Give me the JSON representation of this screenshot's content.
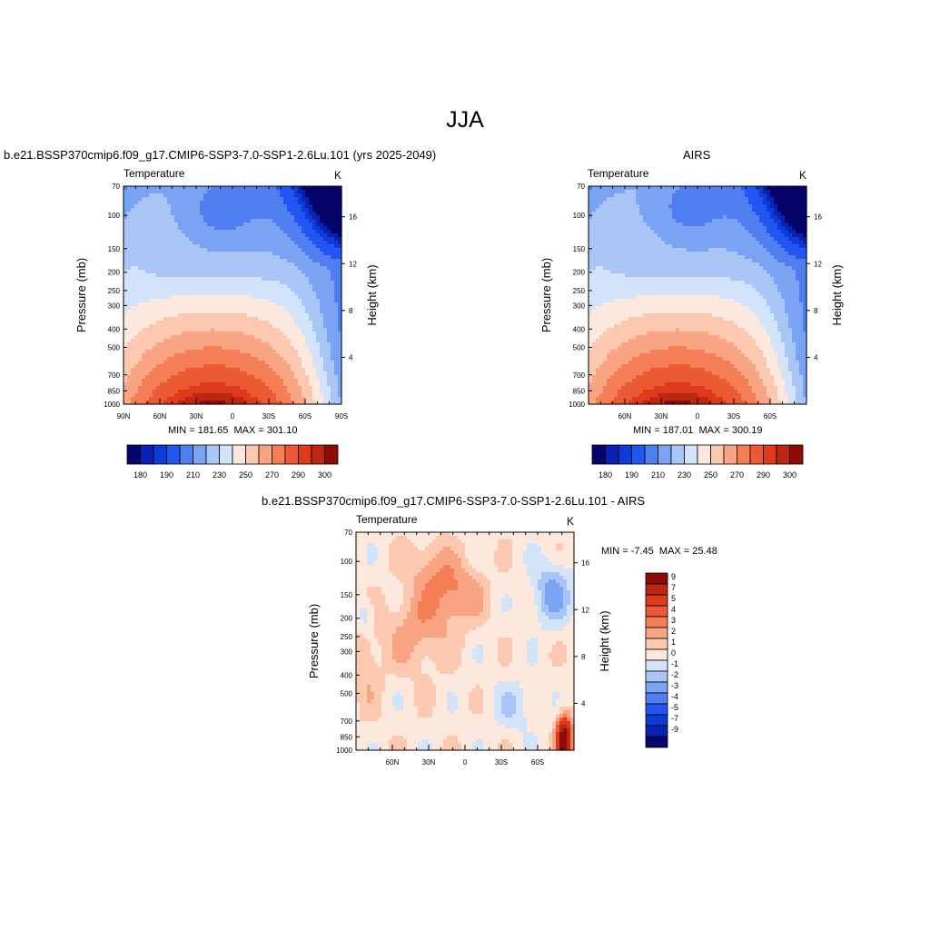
{
  "figure": {
    "title": "JJA"
  },
  "colors": {
    "abs_palette": [
      "#05046b",
      "#0a22b2",
      "#0c3bd8",
      "#2356f0",
      "#4f7ef0",
      "#7ba3f3",
      "#a9c5f6",
      "#d3e4fa",
      "#fde8dd",
      "#fcc9b0",
      "#f9a482",
      "#f47e56",
      "#ec5a34",
      "#df3a1c",
      "#bd2612",
      "#8e0c07"
    ],
    "diff_palette": [
      "#05046b",
      "#0a22b2",
      "#0c3bd8",
      "#2356f0",
      "#4f7ef0",
      "#7ba3f3",
      "#a9c5f6",
      "#d3e4fa",
      "#fde8dd",
      "#fcc9b0",
      "#f9a482",
      "#f47e56",
      "#ec5a34",
      "#df3a1c",
      "#bd2612",
      "#8e0c07"
    ]
  },
  "chart_data": [
    {
      "type": "heatmap",
      "panel": "left",
      "title": "b.e21.BSSP370cmip6.f09_g17.CMIP6-SSP3-7.0-SSP1-2.6Lu.101 (yrs 2025-2049)",
      "variable": "Temperature",
      "units": "K",
      "ylabel": "Pressure (mb)",
      "ylabel_right": "Height (km)",
      "x_ticks": [
        "90N",
        "60N",
        "30N",
        "0",
        "30S",
        "60S",
        "90S"
      ],
      "y_ticks": [
        "70",
        "100",
        "150",
        "200",
        "250",
        "300",
        "400",
        "500",
        "700",
        "850",
        "1000"
      ],
      "y_right_ticks": [
        "4",
        "8",
        "12",
        "16"
      ],
      "min_label": "MIN = 181.65",
      "max_label": "MAX = 301.10",
      "min": 181.65,
      "max": 301.1,
      "colorbar_labels": [
        "180",
        "190",
        "210",
        "230",
        "250",
        "270",
        "290",
        "300"
      ],
      "levels": [
        180,
        185,
        190,
        200,
        210,
        220,
        230,
        240,
        250,
        260,
        270,
        280,
        290,
        295,
        300
      ]
    },
    {
      "type": "heatmap",
      "panel": "right",
      "title": "AIRS",
      "variable": "Temperature",
      "units": "K",
      "ylabel": "Pressure (mb)",
      "ylabel_right": "Height (km)",
      "x_ticks": [
        "60N",
        "30N",
        "0",
        "30S",
        "60S"
      ],
      "y_ticks": [
        "70",
        "100",
        "150",
        "200",
        "250",
        "300",
        "400",
        "500",
        "700",
        "850",
        "1000"
      ],
      "y_right_ticks": [
        "4",
        "8",
        "12",
        "16"
      ],
      "min_label": "MIN = 187.01",
      "max_label": "MAX = 300.19",
      "min": 187.01,
      "max": 300.19,
      "colorbar_labels": [
        "180",
        "190",
        "210",
        "230",
        "250",
        "270",
        "290",
        "300"
      ],
      "levels": [
        180,
        185,
        190,
        200,
        210,
        220,
        230,
        240,
        250,
        260,
        270,
        280,
        290,
        295,
        300
      ]
    },
    {
      "type": "heatmap",
      "panel": "diff",
      "title": "b.e21.BSSP370cmip6.f09_g17.CMIP6-SSP3-7.0-SSP1-2.6Lu.101 - AIRS",
      "variable": "Temperature",
      "units": "K",
      "ylabel": "Pressure (mb)",
      "ylabel_right": "Height (km)",
      "x_ticks": [
        "60N",
        "30N",
        "0",
        "30S",
        "60S"
      ],
      "y_ticks": [
        "70",
        "100",
        "150",
        "200",
        "250",
        "300",
        "400",
        "500",
        "700",
        "850",
        "1000"
      ],
      "y_right_ticks": [
        "4",
        "8",
        "12",
        "16"
      ],
      "min_label": "MIN =  -7.45",
      "max_label": "MAX =  25.48",
      "min": -7.45,
      "max": 25.48,
      "colorbar_labels": [
        "9",
        "7",
        "5",
        "4",
        "3",
        "2",
        "1",
        "0",
        "-1",
        "-2",
        "-3",
        "-4",
        "-5",
        "-7",
        "-9"
      ],
      "levels": [
        -9,
        -7,
        -5,
        -4,
        -3,
        -2,
        -1,
        0,
        1,
        2,
        3,
        4,
        5,
        7,
        9
      ]
    }
  ]
}
